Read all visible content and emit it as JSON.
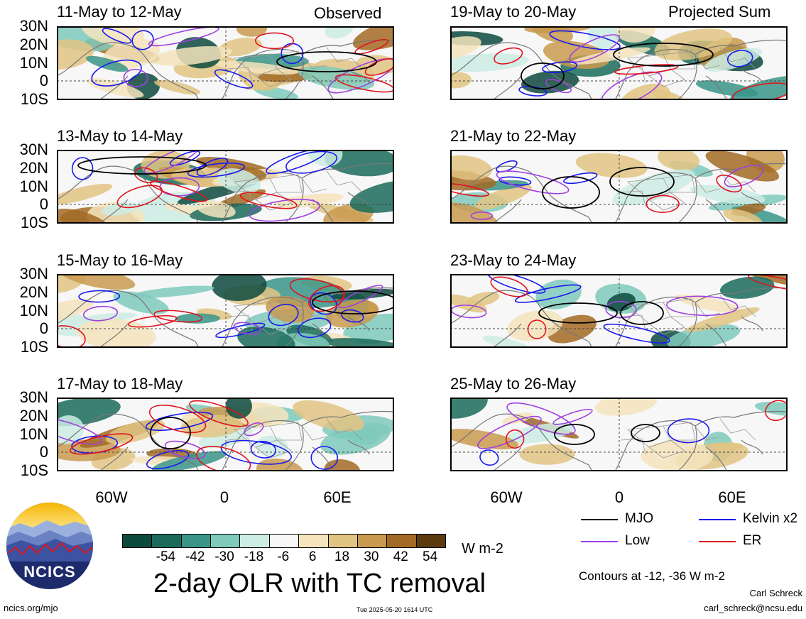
{
  "header": {
    "left_corner": "Observed",
    "right_corner": "Projected Sum"
  },
  "panels": [
    {
      "title": "11-May to 12-May",
      "column": "left",
      "row": 0
    },
    {
      "title": "13-May to 14-May",
      "column": "left",
      "row": 1
    },
    {
      "title": "15-May to 16-May",
      "column": "left",
      "row": 2
    },
    {
      "title": "17-May to 18-May",
      "column": "left",
      "row": 3
    },
    {
      "title": "19-May to 20-May",
      "column": "right",
      "row": 0
    },
    {
      "title": "21-May to 22-May",
      "column": "right",
      "row": 1
    },
    {
      "title": "23-May to 24-May",
      "column": "right",
      "row": 2
    },
    {
      "title": "25-May to 26-May",
      "column": "right",
      "row": 3
    }
  ],
  "lat_labels": [
    "30N",
    "20N",
    "10N",
    "0",
    "10S"
  ],
  "lon_labels": [
    "60W",
    "0",
    "60E"
  ],
  "legend": {
    "items": [
      {
        "label": "MJO",
        "color": "#000000"
      },
      {
        "label": "Kelvin x2",
        "color": "#1a1aee"
      },
      {
        "label": "Low",
        "color": "#a040e0"
      },
      {
        "label": "ER",
        "color": "#e0141e"
      }
    ],
    "contours_note": "Contours at -12, -36 W m-2"
  },
  "colorbar": {
    "labels": [
      "-54",
      "-42",
      "-30",
      "-18",
      "-6",
      "6",
      "18",
      "30",
      "42",
      "54"
    ],
    "colors": [
      "#0d4a3e",
      "#1a6b5c",
      "#3a9588",
      "#7fcabc",
      "#cdece4",
      "#f7f7f7",
      "#f5e4bd",
      "#e2c482",
      "#c99a4e",
      "#a26a24",
      "#5c3a10"
    ],
    "units": "W m-2"
  },
  "main_title": "2-day OLR with TC removal",
  "footer": {
    "left_link": "ncics.org/mjo",
    "timestamp": "Tue 2025-05-20 1614 UTC",
    "author": "Carl Schreck",
    "email": "carl_schreck@ncsu.edu"
  },
  "logo": {
    "text": "NCICS"
  }
}
